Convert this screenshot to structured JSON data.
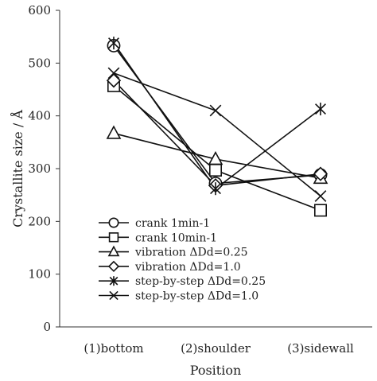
{
  "chart_data": {
    "type": "line",
    "xlabel": "Position",
    "ylabel": "Crystallite size / Å",
    "ylim": [
      0,
      600
    ],
    "yticks": [
      0,
      100,
      200,
      300,
      400,
      500,
      600
    ],
    "categories": [
      "(1)bottom",
      "(2)shoulder",
      "(3)sidewall"
    ],
    "grid": false,
    "legend_position": "bottom-left",
    "series": [
      {
        "name": "crank 1min-1",
        "marker": "circle",
        "values": [
          533,
          272,
          288
        ]
      },
      {
        "name": "crank 10min-1",
        "marker": "square",
        "values": [
          457,
          297,
          221
        ]
      },
      {
        "name": "vibration ΔDd=0.25",
        "marker": "triangle",
        "values": [
          367,
          318,
          282
        ]
      },
      {
        "name": "vibration ΔDd=1.0",
        "marker": "diamond",
        "values": [
          467,
          268,
          290
        ]
      },
      {
        "name": "step-by-step ΔDd=0.25",
        "marker": "asterisk",
        "values": [
          538,
          262,
          413
        ]
      },
      {
        "name": "step-by-step ΔDd=1.0",
        "marker": "x",
        "values": [
          481,
          410,
          248
        ]
      }
    ]
  }
}
